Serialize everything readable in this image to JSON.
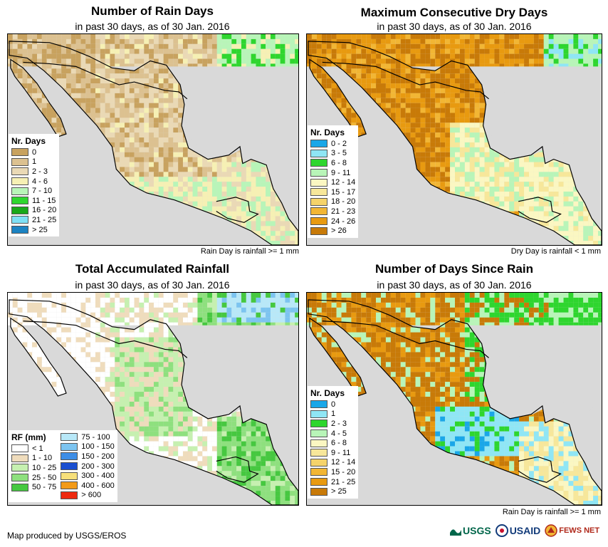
{
  "panels": [
    {
      "title": "Number of Rain Days",
      "subtitle": "in past 30 days, as of 30 Jan. 2016",
      "note": "Rain Day is rainfall >= 1 mm",
      "legend_title": "Nr. Days",
      "legend": [
        {
          "label": "0",
          "color": "#c8a25f"
        },
        {
          "label": "1",
          "color": "#dcc190"
        },
        {
          "label": "2 - 3",
          "color": "#ead9b5"
        },
        {
          "label": "4 - 6",
          "color": "#f6f0b4"
        },
        {
          "label": "7 - 10",
          "color": "#b8f5b8"
        },
        {
          "label": "11 - 15",
          "color": "#2ed62e"
        },
        {
          "label": "16 - 20",
          "color": "#19a819"
        },
        {
          "label": "21 - 25",
          "color": "#7fe0f5"
        },
        {
          "label": "> 25",
          "color": "#1c83c2"
        }
      ]
    },
    {
      "title": "Maximum Consecutive Dry Days",
      "subtitle": "in past 30 days, as of 30 Jan. 2016",
      "note": "Dry Day is rainfall < 1 mm",
      "legend_title": "Nr. Days",
      "legend": [
        {
          "label": "0 - 2",
          "color": "#1aa7e8"
        },
        {
          "label": "3 - 5",
          "color": "#8fe6f5"
        },
        {
          "label": "6 - 8",
          "color": "#2ed62e"
        },
        {
          "label": "9 - 11",
          "color": "#b8f5b8"
        },
        {
          "label": "12 - 14",
          "color": "#fbf7c2"
        },
        {
          "label": "15 - 17",
          "color": "#f7e79a"
        },
        {
          "label": "18 - 20",
          "color": "#f5d36a"
        },
        {
          "label": "21 - 23",
          "color": "#f2b634"
        },
        {
          "label": "24 - 26",
          "color": "#e89a10"
        },
        {
          "label": "> 26",
          "color": "#c87a08"
        }
      ]
    },
    {
      "title": "Total Accumulated Rainfall",
      "subtitle": "in past 30 days, as of 30 Jan. 2016",
      "note": "",
      "legend_title": "RF (mm)",
      "legend": [
        {
          "label": "< 1",
          "color": "#ffffff"
        },
        {
          "label": "1 - 10",
          "color": "#efdcbc"
        },
        {
          "label": "10 - 25",
          "color": "#c6f0b0"
        },
        {
          "label": "25 - 50",
          "color": "#8ee07e"
        },
        {
          "label": "50 - 75",
          "color": "#46c840"
        },
        {
          "label": "75 - 100",
          "color": "#b8e8f8"
        },
        {
          "label": "100 - 150",
          "color": "#7cc4f0"
        },
        {
          "label": "150 - 200",
          "color": "#3e8ee6"
        },
        {
          "label": "200 - 300",
          "color": "#1b4fd0"
        },
        {
          "label": "300 - 400",
          "color": "#f7e07a"
        },
        {
          "label": "400 - 600",
          "color": "#f29a18"
        },
        {
          "label": "> 600",
          "color": "#ee2a10"
        }
      ]
    },
    {
      "title": "Number of Days Since Rain",
      "subtitle": "in past 30 days, as of 30 Jan. 2016",
      "note": "Rain Day is rainfall >= 1 mm",
      "legend_title": "Nr. Days",
      "legend": [
        {
          "label": "0",
          "color": "#1aa7e8"
        },
        {
          "label": "1",
          "color": "#8fe6f5"
        },
        {
          "label": "2 - 3",
          "color": "#2ed62e"
        },
        {
          "label": "4 - 5",
          "color": "#b8f5b8"
        },
        {
          "label": "6 - 8",
          "color": "#fbf7c2"
        },
        {
          "label": "9 - 11",
          "color": "#f7e79a"
        },
        {
          "label": "12 - 14",
          "color": "#f5d36a"
        },
        {
          "label": "15 - 20",
          "color": "#f2b634"
        },
        {
          "label": "21 - 25",
          "color": "#e89a10"
        },
        {
          "label": "> 25",
          "color": "#c87a08"
        }
      ]
    }
  ],
  "credit": "Map produced by USGS/EROS",
  "logos": [
    "USGS",
    "USAID",
    "FEWS NET"
  ],
  "colors": {
    "ocean": "#d9d9d9",
    "border": "#000000"
  }
}
